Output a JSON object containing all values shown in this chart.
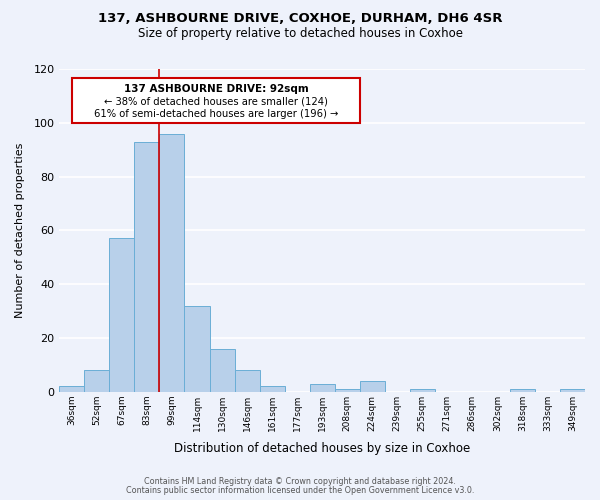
{
  "title_line1": "137, ASHBOURNE DRIVE, COXHOE, DURHAM, DH6 4SR",
  "title_line2": "Size of property relative to detached houses in Coxhoe",
  "xlabel": "Distribution of detached houses by size in Coxhoe",
  "ylabel": "Number of detached properties",
  "categories": [
    "36sqm",
    "52sqm",
    "67sqm",
    "83sqm",
    "99sqm",
    "114sqm",
    "130sqm",
    "146sqm",
    "161sqm",
    "177sqm",
    "193sqm",
    "208sqm",
    "224sqm",
    "239sqm",
    "255sqm",
    "271sqm",
    "286sqm",
    "302sqm",
    "318sqm",
    "333sqm",
    "349sqm"
  ],
  "values": [
    2,
    8,
    57,
    93,
    96,
    32,
    16,
    8,
    2,
    0,
    3,
    1,
    4,
    0,
    1,
    0,
    0,
    0,
    1,
    0,
    1
  ],
  "bar_color": "#b8d0ea",
  "bar_edge_color": "#6aaed6",
  "annotation_title": "137 ASHBOURNE DRIVE: 92sqm",
  "annotation_line2": "← 38% of detached houses are smaller (124)",
  "annotation_line3": "61% of semi-detached houses are larger (196) →",
  "annotation_box_color": "#cc0000",
  "ylim": [
    0,
    120
  ],
  "yticks": [
    0,
    20,
    40,
    60,
    80,
    100,
    120
  ],
  "footer_line1": "Contains HM Land Registry data © Crown copyright and database right 2024.",
  "footer_line2": "Contains public sector information licensed under the Open Government Licence v3.0.",
  "background_color": "#eef2fb",
  "grid_color": "#ffffff"
}
